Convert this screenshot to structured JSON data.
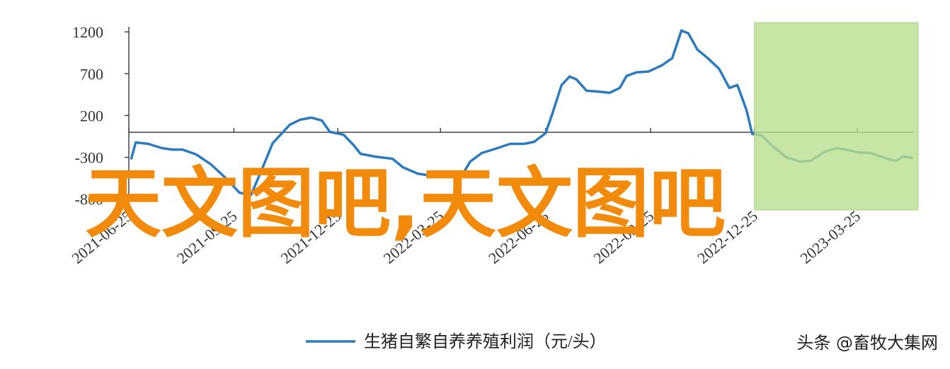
{
  "chart_data": {
    "type": "line",
    "x": [
      "2021-06-27",
      "2021-07-01",
      "2021-07-12",
      "2021-07-24",
      "2021-08-02",
      "2021-08-11",
      "2021-08-23",
      "2021-09-05",
      "2021-09-17",
      "2021-09-30",
      "2021-10-10",
      "2021-10-18",
      "2021-10-29",
      "2021-11-13",
      "2021-11-22",
      "2021-12-02",
      "2021-12-11",
      "2021-12-18",
      "2021-12-30",
      "2022-01-08",
      "2022-01-14",
      "2022-01-27",
      "2022-02-11",
      "2022-02-20",
      "2022-03-05",
      "2022-03-17",
      "2022-03-30",
      "2022-04-14",
      "2022-04-20",
      "2022-04-30",
      "2022-05-12",
      "2022-05-25",
      "2022-06-06",
      "2022-06-15",
      "2022-06-25",
      "2022-07-01",
      "2022-07-09",
      "2022-07-16",
      "2022-07-22",
      "2022-07-31",
      "2022-08-08",
      "2022-08-20",
      "2022-08-29",
      "2022-09-04",
      "2022-09-13",
      "2022-09-23",
      "2022-10-05",
      "2022-10-14",
      "2022-10-22",
      "2022-10-28",
      "2022-11-05",
      "2022-11-14",
      "2022-11-24",
      "2022-12-03",
      "2022-12-10",
      "2022-12-18",
      "2022-12-23",
      "2022-12-31",
      "2023-01-09",
      "2023-01-22",
      "2023-02-03",
      "2023-02-12",
      "2023-02-25",
      "2023-03-06",
      "2023-03-15",
      "2023-03-25",
      "2023-04-06",
      "2023-04-22",
      "2023-04-28",
      "2023-05-04",
      "2023-05-13"
    ],
    "series": [
      {
        "name": "生猪自繁自养养殖利润（元/头）",
        "color": "#2b7bbd",
        "values": [
          -325,
          -122,
          -139,
          -190,
          -207,
          -207,
          -266,
          -385,
          -537,
          -724,
          -749,
          -495,
          -131,
          90,
          149,
          175,
          141,
          5,
          -29,
          -156,
          -258,
          -292,
          -317,
          -419,
          -495,
          -520,
          -520,
          -486,
          -351,
          -249,
          -198,
          -139,
          -139,
          -114,
          -12,
          225,
          564,
          666,
          632,
          496,
          488,
          471,
          530,
          674,
          717,
          725,
          801,
          886,
          1216,
          1183,
          988,
          886,
          759,
          530,
          564,
          267,
          -20,
          -37,
          -156,
          -300,
          -351,
          -342,
          -232,
          -190,
          -207,
          -241,
          -249,
          -325,
          -342,
          -290,
          -308
        ]
      }
    ],
    "xlim": [
      "2021-06-25",
      "2023-05-13"
    ],
    "xticks": [
      "2021-06-25",
      "2021-09-25",
      "2021-12-25",
      "2022-03-25",
      "2022-06-25",
      "2022-09-25",
      "2022-12-25",
      "2023-03-25"
    ],
    "ylim": [
      -870,
      1260
    ],
    "yticks": [
      -800,
      -300,
      200,
      700,
      1200
    ],
    "highlight_from": "2022-12-25"
  },
  "overlay_text": "天文图吧,天文图吧",
  "source": "头条 @畜牧大集网"
}
